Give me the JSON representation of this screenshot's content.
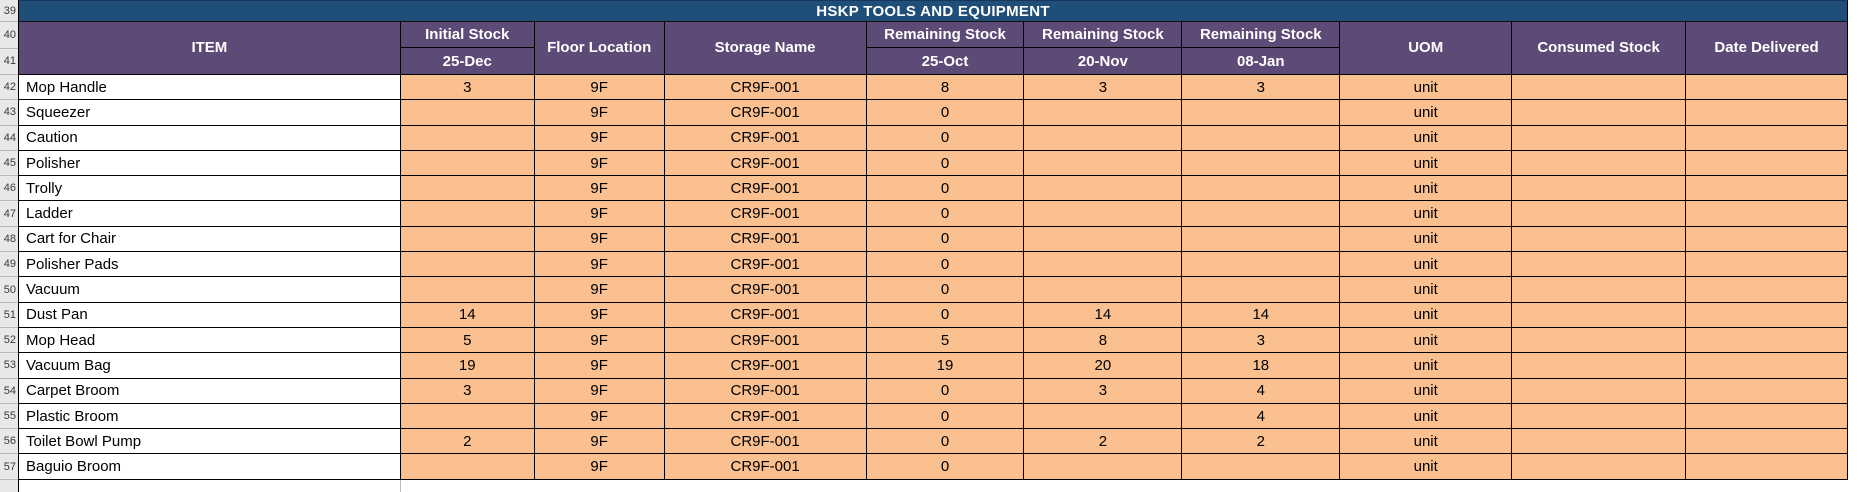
{
  "title": "HSKP TOOLS AND EQUIPMENT",
  "colors": {
    "title_bg": "#1f4e79",
    "header_bg": "#5d4a77",
    "data_cell_bg": "#fac08f",
    "item_cell_bg": "#ffffff",
    "gutter_bg": "#e8e8e8",
    "grid_line": "#000000",
    "header_text": "#ffffff",
    "data_text": "#000000"
  },
  "gutter": {
    "title_row_number": "39",
    "header_row_numbers": [
      "40",
      "41"
    ]
  },
  "table": {
    "columns": [
      {
        "key": "item",
        "label": "ITEM",
        "sublabel": ""
      },
      {
        "key": "initial_stock",
        "label": "Initial Stock",
        "sublabel": "25-Dec"
      },
      {
        "key": "floor_location",
        "label": "Floor Location",
        "sublabel": ""
      },
      {
        "key": "storage_name",
        "label": "Storage Name",
        "sublabel": ""
      },
      {
        "key": "rs_oct",
        "label": "Remaining Stock",
        "sublabel": "25-Oct"
      },
      {
        "key": "rs_nov",
        "label": "Remaining Stock",
        "sublabel": "20-Nov"
      },
      {
        "key": "rs_jan",
        "label": "Remaining Stock",
        "sublabel": "08-Jan"
      },
      {
        "key": "uom",
        "label": "UOM",
        "sublabel": ""
      },
      {
        "key": "consumed",
        "label": "Consumed Stock",
        "sublabel": ""
      },
      {
        "key": "date_delivered",
        "label": "Date Delivered",
        "sublabel": ""
      }
    ],
    "rows": [
      {
        "row_number": "42",
        "item": "Mop Handle",
        "initial_stock": "3",
        "floor_location": "9F",
        "storage_name": "CR9F-001",
        "rs_oct": "8",
        "rs_nov": "3",
        "rs_jan": "3",
        "uom": "unit",
        "consumed": "",
        "date_delivered": ""
      },
      {
        "row_number": "43",
        "item": "Squeezer",
        "initial_stock": "",
        "floor_location": "9F",
        "storage_name": "CR9F-001",
        "rs_oct": "0",
        "rs_nov": "",
        "rs_jan": "",
        "uom": "unit",
        "consumed": "",
        "date_delivered": ""
      },
      {
        "row_number": "44",
        "item": "Caution",
        "initial_stock": "",
        "floor_location": "9F",
        "storage_name": "CR9F-001",
        "rs_oct": "0",
        "rs_nov": "",
        "rs_jan": "",
        "uom": "unit",
        "consumed": "",
        "date_delivered": ""
      },
      {
        "row_number": "45",
        "item": "Polisher",
        "initial_stock": "",
        "floor_location": "9F",
        "storage_name": "CR9F-001",
        "rs_oct": "0",
        "rs_nov": "",
        "rs_jan": "",
        "uom": "unit",
        "consumed": "",
        "date_delivered": ""
      },
      {
        "row_number": "46",
        "item": "Trolly",
        "initial_stock": "",
        "floor_location": "9F",
        "storage_name": "CR9F-001",
        "rs_oct": "0",
        "rs_nov": "",
        "rs_jan": "",
        "uom": "unit",
        "consumed": "",
        "date_delivered": ""
      },
      {
        "row_number": "47",
        "item": "Ladder",
        "initial_stock": "",
        "floor_location": "9F",
        "storage_name": "CR9F-001",
        "rs_oct": "0",
        "rs_nov": "",
        "rs_jan": "",
        "uom": "unit",
        "consumed": "",
        "date_delivered": ""
      },
      {
        "row_number": "48",
        "item": "Cart for Chair",
        "initial_stock": "",
        "floor_location": "9F",
        "storage_name": "CR9F-001",
        "rs_oct": "0",
        "rs_nov": "",
        "rs_jan": "",
        "uom": "unit",
        "consumed": "",
        "date_delivered": ""
      },
      {
        "row_number": "49",
        "item": "Polisher Pads",
        "initial_stock": "",
        "floor_location": "9F",
        "storage_name": "CR9F-001",
        "rs_oct": "0",
        "rs_nov": "",
        "rs_jan": "",
        "uom": "unit",
        "consumed": "",
        "date_delivered": ""
      },
      {
        "row_number": "50",
        "item": "Vacuum",
        "initial_stock": "",
        "floor_location": "9F",
        "storage_name": "CR9F-001",
        "rs_oct": "0",
        "rs_nov": "",
        "rs_jan": "",
        "uom": "unit",
        "consumed": "",
        "date_delivered": ""
      },
      {
        "row_number": "51",
        "item": "Dust Pan",
        "initial_stock": "14",
        "floor_location": "9F",
        "storage_name": "CR9F-001",
        "rs_oct": "0",
        "rs_nov": "14",
        "rs_jan": "14",
        "uom": "unit",
        "consumed": "",
        "date_delivered": ""
      },
      {
        "row_number": "52",
        "item": "Mop Head",
        "initial_stock": "5",
        "floor_location": "9F",
        "storage_name": "CR9F-001",
        "rs_oct": "5",
        "rs_nov": "8",
        "rs_jan": "3",
        "uom": "unit",
        "consumed": "",
        "date_delivered": ""
      },
      {
        "row_number": "53",
        "item": "Vacuum Bag",
        "initial_stock": "19",
        "floor_location": "9F",
        "storage_name": "CR9F-001",
        "rs_oct": "19",
        "rs_nov": "20",
        "rs_jan": "18",
        "uom": "unit",
        "consumed": "",
        "date_delivered": ""
      },
      {
        "row_number": "54",
        "item": "Carpet Broom",
        "initial_stock": "3",
        "floor_location": "9F",
        "storage_name": "CR9F-001",
        "rs_oct": "0",
        "rs_nov": "3",
        "rs_jan": "4",
        "uom": "unit",
        "consumed": "",
        "date_delivered": ""
      },
      {
        "row_number": "55",
        "item": "Plastic Broom",
        "initial_stock": "",
        "floor_location": "9F",
        "storage_name": "CR9F-001",
        "rs_oct": "0",
        "rs_nov": "",
        "rs_jan": "4",
        "uom": "unit",
        "consumed": "",
        "date_delivered": ""
      },
      {
        "row_number": "56",
        "item": "Toilet Bowl Pump",
        "initial_stock": "2",
        "floor_location": "9F",
        "storage_name": "CR9F-001",
        "rs_oct": "0",
        "rs_nov": "2",
        "rs_jan": "2",
        "uom": "unit",
        "consumed": "",
        "date_delivered": ""
      },
      {
        "row_number": "57",
        "item": "Baguio Broom",
        "initial_stock": "",
        "floor_location": "9F",
        "storage_name": "CR9F-001",
        "rs_oct": "0",
        "rs_nov": "",
        "rs_jan": "",
        "uom": "unit",
        "consumed": "",
        "date_delivered": ""
      }
    ]
  }
}
